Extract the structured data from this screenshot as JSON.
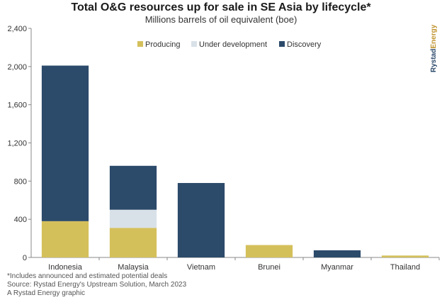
{
  "chart_data": {
    "type": "bar",
    "stacked": true,
    "title": "Total O&G resources up for sale in SE Asia by lifecycle*",
    "subtitle": "Millions barrels of oil equivalent (boe)",
    "categories": [
      "Indonesia",
      "Malaysia",
      "Vietnam",
      "Brunei",
      "Myanmar",
      "Thailand"
    ],
    "series": [
      {
        "name": "Producing",
        "color": "#d4c05b",
        "values": [
          380,
          310,
          0,
          130,
          0,
          20
        ]
      },
      {
        "name": "Under development",
        "color": "#d9e1e8",
        "values": [
          0,
          190,
          0,
          0,
          0,
          0
        ]
      },
      {
        "name": "Discovery",
        "color": "#2c4a6a",
        "values": [
          1630,
          460,
          780,
          0,
          75,
          0
        ]
      }
    ],
    "ylim": [
      0,
      2400
    ],
    "yticks": [
      0,
      400,
      800,
      1200,
      1600,
      2000,
      2400
    ],
    "ytick_labels": [
      "0",
      "400",
      "800",
      "1,200",
      "1,600",
      "2,000",
      "2,400"
    ],
    "grid": false,
    "legend_position": "top-center"
  },
  "brand": {
    "logo_text": "RystadEnergy",
    "logo_part1": "Rystad",
    "logo_part2": "Energy"
  },
  "footnotes": [
    "*Includes announced and estimated potential deals",
    "Source: Rystad Energy's Upstream Solution, March 2023",
    "A Rystad Energy graphic"
  ]
}
